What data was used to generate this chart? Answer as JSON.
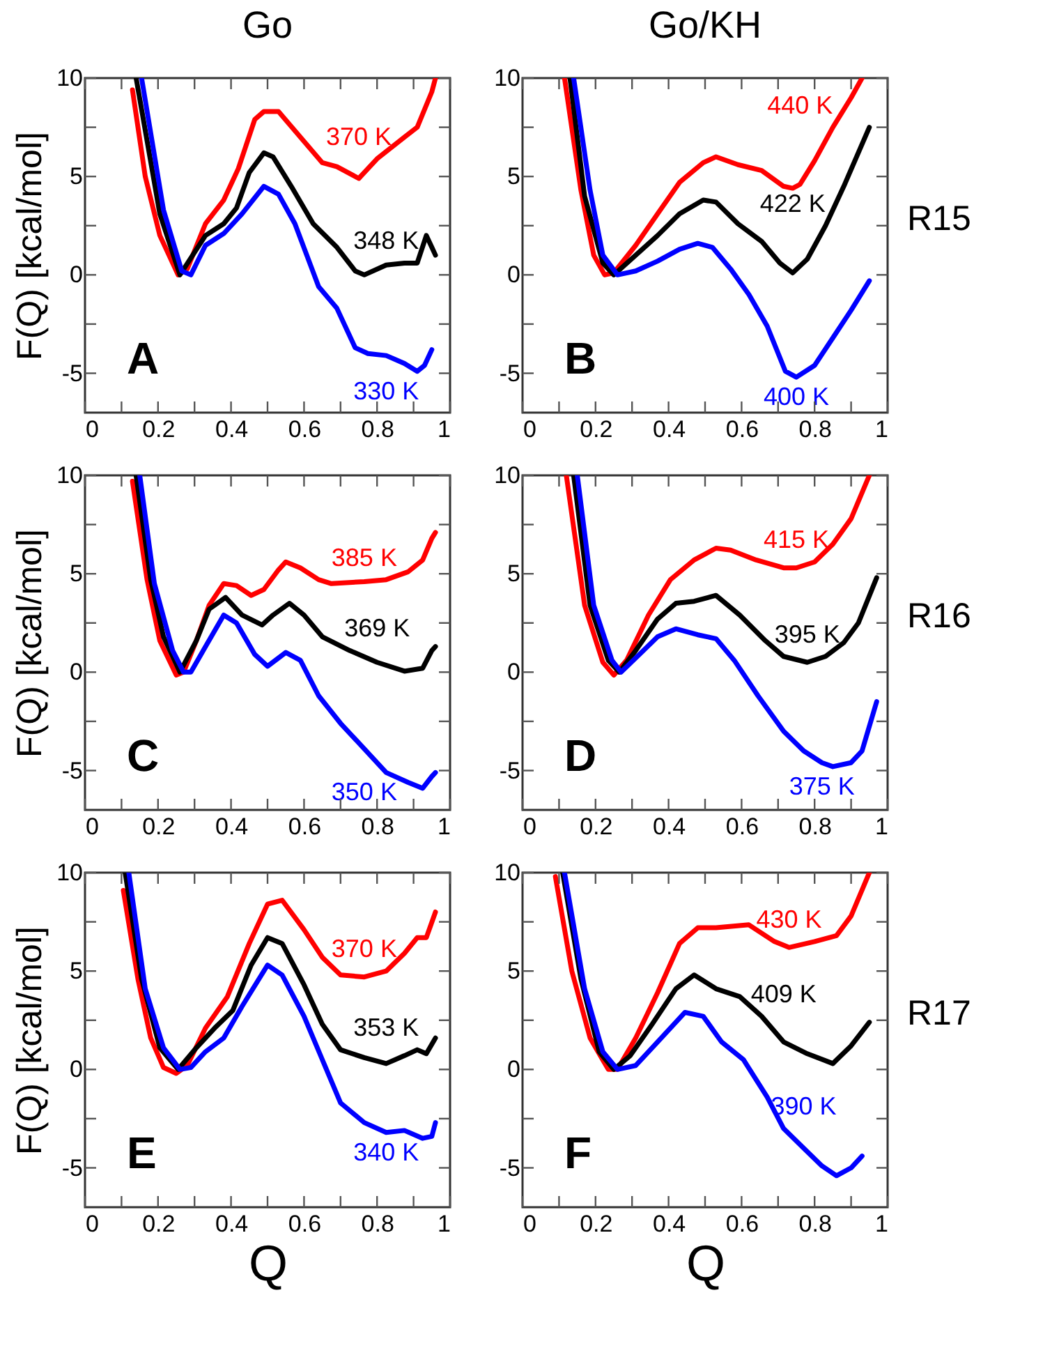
{
  "chart_data": [
    {
      "type": "line",
      "title": "Go",
      "ylabel": "F(Q) [kcal/mol]",
      "annotations": [
        "A"
      ],
      "line_style": "solid",
      "xlim": [
        0,
        1
      ],
      "ylim": [
        -7,
        10
      ],
      "xticks": [
        0,
        {
          "value": 0.1,
          "label": null
        },
        0.2,
        {
          "value": 0.3,
          "label": null
        },
        0.4,
        {
          "value": 0.5,
          "label": null
        },
        0.6,
        {
          "value": 0.7,
          "label": null
        },
        0.8,
        {
          "value": 0.9,
          "label": null
        },
        1
      ],
      "yticks": [
        -5,
        {
          "value": -2.5,
          "label": null
        },
        0,
        {
          "value": 2.5,
          "label": null
        },
        5,
        {
          "value": 7.5,
          "label": null
        },
        10
      ],
      "series": [
        {
          "name": "370 K",
          "color": "#ff0000",
          "x": [
            0.13,
            0.165,
            0.205,
            0.255,
            0.28,
            0.33,
            0.38,
            0.42,
            0.465,
            0.49,
            0.53,
            0.59,
            0.65,
            0.69,
            0.75,
            0.8,
            0.875,
            0.91,
            0.95,
            0.96
          ],
          "values": [
            9.4,
            5.0,
            2.0,
            0.0,
            0.3,
            2.6,
            3.8,
            5.4,
            7.9,
            8.3,
            8.3,
            7.0,
            5.7,
            5.5,
            4.9,
            5.9,
            7.0,
            7.5,
            9.3,
            10
          ]
        },
        {
          "name": "348 K",
          "color": "#000000",
          "x": [
            0.14,
            0.205,
            0.26,
            0.33,
            0.38,
            0.415,
            0.45,
            0.49,
            0.515,
            0.565,
            0.625,
            0.69,
            0.74,
            0.765,
            0.825,
            0.875,
            0.91,
            0.935,
            0.95,
            0.96
          ],
          "values": [
            10,
            3.1,
            0.0,
            2.0,
            2.6,
            3.4,
            5.2,
            6.2,
            6.0,
            4.5,
            2.6,
            1.4,
            0.2,
            0.0,
            0.5,
            0.6,
            0.6,
            2.0,
            1.4,
            1.0
          ]
        },
        {
          "name": "330 K",
          "color": "#0000ff",
          "x": [
            0.155,
            0.215,
            0.265,
            0.29,
            0.33,
            0.38,
            0.43,
            0.49,
            0.53,
            0.575,
            0.64,
            0.69,
            0.74,
            0.775,
            0.825,
            0.875,
            0.91,
            0.93,
            0.95
          ],
          "values": [
            10,
            3.3,
            0.2,
            0.0,
            1.5,
            2.1,
            3.1,
            4.5,
            4.1,
            2.6,
            -0.6,
            -1.7,
            -3.7,
            -4.0,
            -4.1,
            -4.5,
            -4.9,
            -4.6,
            -3.8
          ]
        }
      ]
    },
    {
      "type": "line",
      "title": "Go/KH",
      "y2label": "R15",
      "annotations": [
        "B"
      ],
      "line_style": "solid",
      "xlim": [
        0,
        1
      ],
      "ylim": [
        -7,
        10
      ],
      "xticks": [
        0,
        {
          "value": 0.1,
          "label": null
        },
        0.2,
        {
          "value": 0.3,
          "label": null
        },
        0.4,
        {
          "value": 0.5,
          "label": null
        },
        0.6,
        {
          "value": 0.7,
          "label": null
        },
        0.8,
        {
          "value": 0.9,
          "label": null
        },
        1
      ],
      "yticks": [
        -5,
        {
          "value": -2.5,
          "label": null
        },
        0,
        {
          "value": 2.5,
          "label": null
        },
        5,
        {
          "value": 7.5,
          "label": null
        },
        10
      ],
      "series": [
        {
          "name": "440 K",
          "color": "#ff0000",
          "x": [
            0.115,
            0.16,
            0.195,
            0.225,
            0.25,
            0.31,
            0.37,
            0.43,
            0.495,
            0.53,
            0.59,
            0.655,
            0.715,
            0.74,
            0.76,
            0.8,
            0.85,
            0.9,
            0.93
          ],
          "values": [
            10,
            4.3,
            1.0,
            0.0,
            0.1,
            1.5,
            3.1,
            4.7,
            5.7,
            6.0,
            5.6,
            5.3,
            4.5,
            4.4,
            4.6,
            5.8,
            7.5,
            9.0,
            10
          ]
        },
        {
          "name": "422 K",
          "color": "#000000",
          "x": [
            0.13,
            0.17,
            0.22,
            0.25,
            0.31,
            0.37,
            0.43,
            0.495,
            0.53,
            0.59,
            0.655,
            0.705,
            0.74,
            0.78,
            0.83,
            0.88,
            0.95
          ],
          "values": [
            10,
            4.0,
            0.6,
            0.0,
            1.0,
            2.0,
            3.1,
            3.8,
            3.7,
            2.6,
            1.7,
            0.6,
            0.1,
            0.8,
            2.5,
            4.5,
            7.5
          ]
        },
        {
          "name": "400 K",
          "color": "#0000ff",
          "x": [
            0.14,
            0.185,
            0.22,
            0.26,
            0.31,
            0.37,
            0.43,
            0.48,
            0.52,
            0.57,
            0.62,
            0.67,
            0.72,
            0.75,
            0.8,
            0.85,
            0.9,
            0.95
          ],
          "values": [
            10,
            4.3,
            1.0,
            0.0,
            0.2,
            0.7,
            1.3,
            1.6,
            1.4,
            0.3,
            -1.0,
            -2.6,
            -4.9,
            -5.2,
            -4.6,
            -3.2,
            -1.8,
            -0.3
          ]
        }
      ]
    },
    {
      "type": "line",
      "ylabel": "F(Q) [kcal/mol]",
      "annotations": [
        "C"
      ],
      "line_style": "solid",
      "xlim": [
        0,
        1
      ],
      "ylim": [
        -7,
        10
      ],
      "xticks": [
        0,
        {
          "value": 0.1,
          "label": null
        },
        0.2,
        {
          "value": 0.3,
          "label": null
        },
        0.4,
        {
          "value": 0.5,
          "label": null
        },
        0.6,
        {
          "value": 0.7,
          "label": null
        },
        0.8,
        {
          "value": 0.9,
          "label": null
        },
        1
      ],
      "yticks": [
        -5,
        {
          "value": -2.5,
          "label": null
        },
        0,
        {
          "value": 2.5,
          "label": null
        },
        5,
        {
          "value": 7.5,
          "label": null
        },
        10
      ],
      "series": [
        {
          "name": "385 K",
          "color": "#ff0000",
          "x": [
            0.13,
            0.17,
            0.205,
            0.25,
            0.27,
            0.305,
            0.34,
            0.38,
            0.415,
            0.455,
            0.49,
            0.53,
            0.55,
            0.59,
            0.64,
            0.675,
            0.765,
            0.825,
            0.885,
            0.925,
            0.95,
            0.96
          ],
          "values": [
            9.7,
            4.7,
            1.6,
            -0.15,
            0.0,
            1.6,
            3.4,
            4.5,
            4.4,
            3.9,
            4.2,
            5.2,
            5.6,
            5.3,
            4.7,
            4.5,
            4.6,
            4.7,
            5.1,
            5.7,
            6.8,
            7.1
          ]
        },
        {
          "name": "369 K",
          "color": "#000000",
          "x": [
            0.14,
            0.18,
            0.215,
            0.26,
            0.305,
            0.34,
            0.385,
            0.43,
            0.485,
            0.515,
            0.56,
            0.6,
            0.65,
            0.725,
            0.8,
            0.875,
            0.925,
            0.95,
            0.96
          ],
          "values": [
            10,
            4.7,
            1.8,
            0.0,
            1.6,
            3.2,
            3.8,
            2.9,
            2.4,
            2.9,
            3.5,
            2.9,
            1.8,
            1.1,
            0.5,
            0.05,
            0.2,
            1.1,
            1.3
          ]
        },
        {
          "name": "350 K",
          "color": "#0000ff",
          "x": [
            0.15,
            0.19,
            0.24,
            0.27,
            0.29,
            0.33,
            0.38,
            0.415,
            0.465,
            0.5,
            0.55,
            0.59,
            0.64,
            0.7,
            0.765,
            0.825,
            0.885,
            0.925,
            0.95,
            0.96
          ],
          "values": [
            10,
            4.5,
            1.1,
            0.0,
            0.0,
            1.3,
            2.9,
            2.5,
            0.9,
            0.3,
            1.0,
            0.6,
            -1.2,
            -2.6,
            -3.9,
            -5.1,
            -5.6,
            -5.9,
            -5.3,
            -5.1
          ]
        }
      ]
    },
    {
      "type": "line",
      "y2label": "R16",
      "annotations": [
        "D"
      ],
      "line_style": "solid",
      "xlim": [
        0,
        1
      ],
      "ylim": [
        -7,
        10
      ],
      "xticks": [
        0,
        {
          "value": 0.1,
          "label": null
        },
        0.2,
        {
          "value": 0.3,
          "label": null
        },
        0.4,
        {
          "value": 0.5,
          "label": null
        },
        0.6,
        {
          "value": 0.7,
          "label": null
        },
        0.8,
        {
          "value": 0.9,
          "label": null
        },
        1
      ],
      "yticks": [
        -5,
        {
          "value": -2.5,
          "label": null
        },
        0,
        {
          "value": 2.5,
          "label": null
        },
        5,
        {
          "value": 7.5,
          "label": null
        },
        10
      ],
      "series": [
        {
          "name": "415 K",
          "color": "#ff0000",
          "x": [
            0.12,
            0.17,
            0.22,
            0.25,
            0.285,
            0.345,
            0.405,
            0.47,
            0.53,
            0.57,
            0.64,
            0.715,
            0.75,
            0.8,
            0.85,
            0.9,
            0.95
          ],
          "values": [
            10,
            3.4,
            0.5,
            -0.15,
            0.6,
            2.9,
            4.7,
            5.7,
            6.3,
            6.2,
            5.7,
            5.3,
            5.3,
            5.6,
            6.5,
            7.8,
            10
          ]
        },
        {
          "name": "395 K",
          "color": "#000000",
          "x": [
            0.14,
            0.185,
            0.235,
            0.265,
            0.31,
            0.37,
            0.42,
            0.47,
            0.53,
            0.595,
            0.665,
            0.715,
            0.78,
            0.83,
            0.88,
            0.92,
            0.97
          ],
          "values": [
            10,
            3.4,
            0.6,
            0.0,
            1.1,
            2.7,
            3.5,
            3.6,
            3.9,
            2.9,
            1.6,
            0.8,
            0.5,
            0.8,
            1.5,
            2.5,
            4.8
          ]
        },
        {
          "name": "375 K",
          "color": "#0000ff",
          "x": [
            0.15,
            0.195,
            0.245,
            0.27,
            0.32,
            0.37,
            0.42,
            0.48,
            0.53,
            0.58,
            0.645,
            0.715,
            0.77,
            0.82,
            0.85,
            0.9,
            0.93,
            0.97
          ],
          "values": [
            10,
            3.4,
            0.6,
            0.0,
            0.9,
            1.8,
            2.2,
            1.9,
            1.7,
            0.6,
            -1.2,
            -3.0,
            -4.0,
            -4.6,
            -4.8,
            -4.6,
            -4.0,
            -1.5
          ]
        }
      ]
    },
    {
      "type": "line",
      "xlabel": "Q",
      "ylabel": "F(Q) [kcal/mol]",
      "annotations": [
        "E"
      ],
      "line_style": "solid",
      "xlim": [
        0,
        1
      ],
      "ylim": [
        -7,
        10
      ],
      "xticks": [
        0,
        {
          "value": 0.1,
          "label": null
        },
        0.2,
        {
          "value": 0.3,
          "label": null
        },
        0.4,
        {
          "value": 0.5,
          "label": null
        },
        0.6,
        {
          "value": 0.7,
          "label": null
        },
        0.8,
        {
          "value": 0.9,
          "label": null
        },
        1
      ],
      "yticks": [
        -5,
        {
          "value": -2.5,
          "label": null
        },
        0,
        {
          "value": 2.5,
          "label": null
        },
        5,
        {
          "value": 7.5,
          "label": null
        },
        10
      ],
      "series": [
        {
          "name": "370 K",
          "color": "#ff0000",
          "x": [
            0.105,
            0.145,
            0.18,
            0.215,
            0.25,
            0.28,
            0.33,
            0.39,
            0.45,
            0.5,
            0.54,
            0.6,
            0.65,
            0.7,
            0.765,
            0.825,
            0.875,
            0.91,
            0.935,
            0.96
          ],
          "values": [
            9.1,
            4.6,
            1.6,
            0.1,
            -0.2,
            0.2,
            2.1,
            3.7,
            6.4,
            8.4,
            8.6,
            7.1,
            5.7,
            4.8,
            4.7,
            5.0,
            5.9,
            6.7,
            6.7,
            8.0
          ]
        },
        {
          "name": "353 K",
          "color": "#000000",
          "x": [
            0.11,
            0.155,
            0.205,
            0.255,
            0.305,
            0.355,
            0.405,
            0.455,
            0.5,
            0.54,
            0.6,
            0.65,
            0.7,
            0.765,
            0.825,
            0.875,
            0.91,
            0.935,
            0.96
          ],
          "values": [
            10,
            4.6,
            1.1,
            0.0,
            1.1,
            2.1,
            3.0,
            5.3,
            6.7,
            6.4,
            4.3,
            2.3,
            1.0,
            0.6,
            0.3,
            0.7,
            1.0,
            0.8,
            1.6
          ]
        },
        {
          "name": "340 K",
          "color": "#0000ff",
          "x": [
            0.12,
            0.165,
            0.215,
            0.26,
            0.29,
            0.33,
            0.38,
            0.43,
            0.5,
            0.54,
            0.6,
            0.65,
            0.7,
            0.765,
            0.825,
            0.875,
            0.925,
            0.95,
            0.96
          ],
          "values": [
            10,
            4.1,
            1.1,
            0.0,
            0.1,
            0.9,
            1.6,
            3.2,
            5.3,
            4.8,
            2.7,
            0.5,
            -1.7,
            -2.7,
            -3.2,
            -3.1,
            -3.5,
            -3.4,
            -2.7
          ]
        }
      ]
    },
    {
      "type": "line",
      "xlabel": "Q",
      "y2label": "R17",
      "annotations": [
        "F"
      ],
      "line_style": "solid",
      "xlim": [
        0,
        1
      ],
      "ylim": [
        -7,
        10
      ],
      "xticks": [
        0,
        {
          "value": 0.1,
          "label": null
        },
        0.2,
        {
          "value": 0.3,
          "label": null
        },
        0.4,
        {
          "value": 0.5,
          "label": null
        },
        0.6,
        {
          "value": 0.7,
          "label": null
        },
        0.8,
        {
          "value": 0.9,
          "label": null
        },
        1
      ],
      "yticks": [
        -5,
        {
          "value": -2.5,
          "label": null
        },
        0,
        {
          "value": 2.5,
          "label": null
        },
        5,
        {
          "value": 7.5,
          "label": null
        },
        10
      ],
      "series": [
        {
          "name": "430 K",
          "color": "#ff0000",
          "x": [
            0.09,
            0.135,
            0.185,
            0.235,
            0.26,
            0.31,
            0.37,
            0.43,
            0.48,
            0.53,
            0.62,
            0.69,
            0.73,
            0.8,
            0.86,
            0.9,
            0.95
          ],
          "values": [
            9.8,
            5.0,
            1.6,
            0.0,
            0.0,
            1.6,
            3.9,
            6.4,
            7.2,
            7.2,
            7.35,
            6.5,
            6.2,
            6.5,
            6.8,
            7.8,
            10
          ]
        },
        {
          "name": "409 K",
          "color": "#000000",
          "x": [
            0.11,
            0.16,
            0.21,
            0.25,
            0.295,
            0.355,
            0.42,
            0.47,
            0.53,
            0.595,
            0.655,
            0.715,
            0.78,
            0.85,
            0.9,
            0.95
          ],
          "values": [
            10,
            4.6,
            0.9,
            0.0,
            0.7,
            2.3,
            4.1,
            4.8,
            4.1,
            3.7,
            2.7,
            1.4,
            0.8,
            0.3,
            1.2,
            2.4
          ]
        },
        {
          "name": "390 K",
          "color": "#0000ff",
          "x": [
            0.115,
            0.17,
            0.22,
            0.26,
            0.31,
            0.37,
            0.445,
            0.495,
            0.545,
            0.605,
            0.67,
            0.715,
            0.77,
            0.82,
            0.86,
            0.9,
            0.93
          ],
          "values": [
            10,
            4.1,
            0.9,
            0.0,
            0.2,
            1.4,
            2.9,
            2.7,
            1.4,
            0.5,
            -1.4,
            -3.0,
            -4.0,
            -4.9,
            -5.4,
            -5.0,
            -4.4
          ]
        }
      ]
    }
  ]
}
